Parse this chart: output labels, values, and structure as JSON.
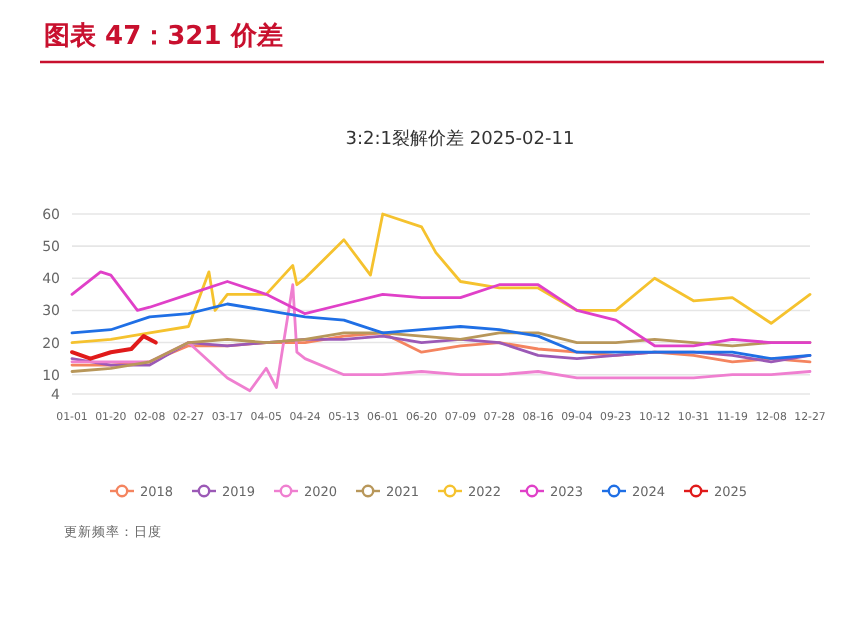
{
  "chart_data": {
    "type": "line",
    "title": "图表 47：321 价差",
    "subtitle": "3:2:1裂解价差 2025-02-11",
    "annotations": [
      "更新频率：日度"
    ],
    "xlim": [
      "--01-01",
      "--12-27"
    ],
    "ylim": [
      4,
      60
    ],
    "xticks": [
      {
        "value": "--01-01",
        "label": "01-01"
      },
      {
        "value": "--01-20",
        "label": "01-20"
      },
      {
        "value": "--02-08",
        "label": "02-08"
      },
      {
        "value": "--02-27",
        "label": "02-27"
      },
      {
        "value": "--03-17",
        "label": "03-17"
      },
      {
        "value": "--04-05",
        "label": "04-05"
      },
      {
        "value": "--04-24",
        "label": "04-24"
      },
      {
        "value": "--05-13",
        "label": "05-13"
      },
      {
        "value": "--06-01",
        "label": "06-01"
      },
      {
        "value": "--06-20",
        "label": "06-20"
      },
      {
        "value": "--07-09",
        "label": "07-09"
      },
      {
        "value": "--07-28",
        "label": "07-28"
      },
      {
        "value": "--08-16",
        "label": "08-16"
      },
      {
        "value": "--09-04",
        "label": "09-04"
      },
      {
        "value": "--09-23",
        "label": "09-23"
      },
      {
        "value": "--10-12",
        "label": "10-12"
      },
      {
        "value": "--10-31",
        "label": "10-31"
      },
      {
        "value": "--11-19",
        "label": "11-19"
      },
      {
        "value": "--12-08",
        "label": "12-08"
      },
      {
        "value": "--12-27",
        "label": "12-27"
      }
    ],
    "yticks": [
      4,
      10,
      20,
      30,
      40,
      50,
      60
    ],
    "grid": "y",
    "legend": "bottom",
    "marker": "none",
    "line_style": "solid",
    "series": [
      {
        "name": "2018",
        "color": "#f4845f",
        "x": [
          "--01-01",
          "--01-20",
          "--02-08",
          "--02-27",
          "--03-17",
          "--04-05",
          "--04-24",
          "--05-13",
          "--06-01",
          "--06-20",
          "--07-09",
          "--07-28",
          "--08-16",
          "--09-04",
          "--09-23",
          "--10-12",
          "--10-31",
          "--11-19",
          "--12-08",
          "--12-27"
        ],
        "values": [
          13,
          13,
          14,
          19,
          19,
          20,
          20,
          22,
          23,
          17,
          19,
          20,
          18,
          17,
          16,
          17,
          16,
          14,
          15,
          14
        ]
      },
      {
        "name": "2019",
        "color": "#9b59b6",
        "x": [
          "--01-01",
          "--01-20",
          "--02-08",
          "--02-27",
          "--03-17",
          "--04-05",
          "--04-24",
          "--05-13",
          "--06-01",
          "--06-20",
          "--07-09",
          "--07-28",
          "--08-16",
          "--09-04",
          "--09-23",
          "--10-12",
          "--10-31",
          "--11-19",
          "--12-08",
          "--12-27"
        ],
        "values": [
          15,
          13,
          13,
          20,
          19,
          20,
          21,
          21,
          22,
          20,
          21,
          20,
          16,
          15,
          16,
          17,
          17,
          16,
          14,
          16
        ]
      },
      {
        "name": "2020",
        "color": "#ef7fd0",
        "x": [
          "--01-01",
          "--01-20",
          "--02-08",
          "--02-27",
          "--03-17",
          "--03-28",
          "--04-05",
          "--04-10",
          "--04-18",
          "--04-20",
          "--04-24",
          "--05-13",
          "--06-01",
          "--06-20",
          "--07-09",
          "--07-28",
          "--08-16",
          "--09-04",
          "--09-23",
          "--10-12",
          "--10-31",
          "--11-19",
          "--12-08",
          "--12-27"
        ],
        "values": [
          14,
          14,
          14,
          20,
          9,
          5,
          12,
          6,
          38,
          17,
          15,
          10,
          10,
          11,
          10,
          10,
          11,
          9,
          9,
          9,
          9,
          10,
          10,
          11
        ]
      },
      {
        "name": "2021",
        "color": "#b8975a",
        "x": [
          "--01-01",
          "--01-20",
          "--02-08",
          "--02-27",
          "--03-17",
          "--04-05",
          "--04-24",
          "--05-13",
          "--06-01",
          "--06-20",
          "--07-09",
          "--07-28",
          "--08-16",
          "--09-04",
          "--09-23",
          "--10-12",
          "--10-31",
          "--11-19",
          "--12-08",
          "--12-27"
        ],
        "values": [
          11,
          12,
          14,
          20,
          21,
          20,
          21,
          23,
          23,
          22,
          21,
          23,
          23,
          20,
          20,
          21,
          20,
          19,
          20,
          20
        ]
      },
      {
        "name": "2022",
        "color": "#f5c22e",
        "x": [
          "--01-01",
          "--01-20",
          "--02-08",
          "--02-27",
          "--03-08",
          "--03-11",
          "--03-17",
          "--04-05",
          "--04-18",
          "--04-20",
          "--04-24",
          "--05-13",
          "--05-26",
          "--06-01",
          "--06-20",
          "--06-27",
          "--07-09",
          "--07-28",
          "--08-16",
          "--09-04",
          "--09-23",
          "--10-12",
          "--10-31",
          "--11-19",
          "--12-08",
          "--12-27"
        ],
        "values": [
          20,
          21,
          23,
          25,
          42,
          30,
          35,
          35,
          44,
          38,
          40,
          52,
          41,
          60,
          56,
          48,
          39,
          37,
          37,
          30,
          30,
          40,
          33,
          34,
          26,
          35
        ]
      },
      {
        "name": "2023",
        "color": "#e040c8",
        "x": [
          "--01-01",
          "--01-15",
          "--01-20",
          "--02-02",
          "--02-08",
          "--02-27",
          "--03-17",
          "--04-05",
          "--04-24",
          "--05-13",
          "--06-01",
          "--06-20",
          "--07-09",
          "--07-28",
          "--08-16",
          "--09-04",
          "--09-23",
          "--10-12",
          "--10-31",
          "--11-19",
          "--12-08",
          "--12-27"
        ],
        "values": [
          35,
          42,
          41,
          30,
          31,
          35,
          39,
          35,
          29,
          32,
          35,
          34,
          34,
          38,
          38,
          30,
          27,
          19,
          19,
          21,
          20,
          20
        ]
      },
      {
        "name": "2024",
        "color": "#1f6fe5",
        "x": [
          "--01-01",
          "--01-20",
          "--02-08",
          "--02-27",
          "--03-17",
          "--04-05",
          "--04-24",
          "--05-13",
          "--06-01",
          "--06-20",
          "--07-09",
          "--07-28",
          "--08-16",
          "--09-04",
          "--09-23",
          "--10-12",
          "--10-31",
          "--11-19",
          "--12-08",
          "--12-27"
        ],
        "values": [
          23,
          24,
          28,
          29,
          32,
          30,
          28,
          27,
          23,
          24,
          25,
          24,
          22,
          17,
          17,
          17,
          17,
          17,
          15,
          16
        ]
      },
      {
        "name": "2025",
        "color": "#e01a1a",
        "x": [
          "--01-01",
          "--01-10",
          "--01-20",
          "--01-30",
          "--02-05",
          "--02-11"
        ],
        "values": [
          17,
          15,
          17,
          18,
          22,
          20
        ]
      }
    ]
  }
}
